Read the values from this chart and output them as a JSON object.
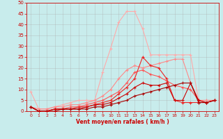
{
  "title": "",
  "xlabel": "Vent moyen/en rafales ( km/h )",
  "ylabel": "",
  "xlim": [
    -0.5,
    23.5
  ],
  "ylim": [
    0,
    50
  ],
  "yticks": [
    0,
    5,
    10,
    15,
    20,
    25,
    30,
    35,
    40,
    45,
    50
  ],
  "xticks": [
    0,
    1,
    2,
    3,
    4,
    5,
    6,
    7,
    8,
    9,
    10,
    11,
    12,
    13,
    14,
    15,
    16,
    17,
    18,
    19,
    20,
    21,
    22,
    23
  ],
  "background_color": "#c8ecec",
  "grid_color": "#aaaaaa",
  "lines": [
    {
      "color": "#ffaaaa",
      "x": [
        0,
        1,
        2,
        3,
        4,
        5,
        6,
        7,
        8,
        9,
        10,
        11,
        12,
        13,
        14,
        15,
        16,
        17,
        18,
        19,
        20,
        21,
        22,
        23
      ],
      "y": [
        9,
        1,
        1,
        2,
        3,
        4,
        5,
        5,
        5,
        18,
        29,
        41,
        46,
        46,
        38,
        26,
        26,
        26,
        26,
        26,
        26,
        5,
        5,
        5
      ]
    },
    {
      "color": "#ff8888",
      "x": [
        0,
        1,
        2,
        3,
        4,
        5,
        6,
        7,
        8,
        9,
        10,
        11,
        12,
        13,
        14,
        15,
        16,
        17,
        18,
        19,
        20,
        21,
        22,
        23
      ],
      "y": [
        2,
        1,
        1,
        2,
        2,
        3,
        3,
        4,
        5,
        7,
        10,
        15,
        19,
        21,
        20,
        21,
        22,
        23,
        24,
        24,
        13,
        5,
        5,
        5
      ]
    },
    {
      "color": "#ff5555",
      "x": [
        0,
        1,
        2,
        3,
        4,
        5,
        6,
        7,
        8,
        9,
        10,
        11,
        12,
        13,
        14,
        15,
        16,
        17,
        18,
        19,
        20,
        21,
        22,
        23
      ],
      "y": [
        2,
        0,
        0,
        1,
        1,
        2,
        2,
        3,
        4,
        5,
        7,
        9,
        13,
        18,
        19,
        17,
        16,
        14,
        12,
        11,
        10,
        5,
        4,
        5
      ]
    },
    {
      "color": "#ee2222",
      "x": [
        0,
        1,
        2,
        3,
        4,
        5,
        6,
        7,
        8,
        9,
        10,
        11,
        12,
        13,
        14,
        15,
        16,
        17,
        18,
        19,
        20,
        21,
        22,
        23
      ],
      "y": [
        2,
        0,
        0,
        1,
        1,
        1,
        2,
        2,
        3,
        4,
        5,
        8,
        11,
        15,
        25,
        21,
        20,
        15,
        5,
        4,
        4,
        4,
        4,
        5
      ]
    },
    {
      "color": "#cc0000",
      "x": [
        0,
        1,
        2,
        3,
        4,
        5,
        6,
        7,
        8,
        9,
        10,
        11,
        12,
        13,
        14,
        15,
        16,
        17,
        18,
        19,
        20,
        21,
        22,
        23
      ],
      "y": [
        2,
        0,
        0,
        1,
        1,
        1,
        1,
        2,
        3,
        3,
        4,
        6,
        8,
        11,
        13,
        12,
        12,
        13,
        5,
        5,
        13,
        5,
        4,
        5
      ]
    },
    {
      "color": "#aa0000",
      "x": [
        0,
        1,
        2,
        3,
        4,
        5,
        6,
        7,
        8,
        9,
        10,
        11,
        12,
        13,
        14,
        15,
        16,
        17,
        18,
        19,
        20,
        21,
        22,
        23
      ],
      "y": [
        2,
        0,
        0,
        0,
        1,
        1,
        1,
        1,
        2,
        2,
        3,
        4,
        5,
        7,
        8,
        9,
        10,
        11,
        12,
        13,
        13,
        4,
        4,
        5
      ]
    }
  ]
}
